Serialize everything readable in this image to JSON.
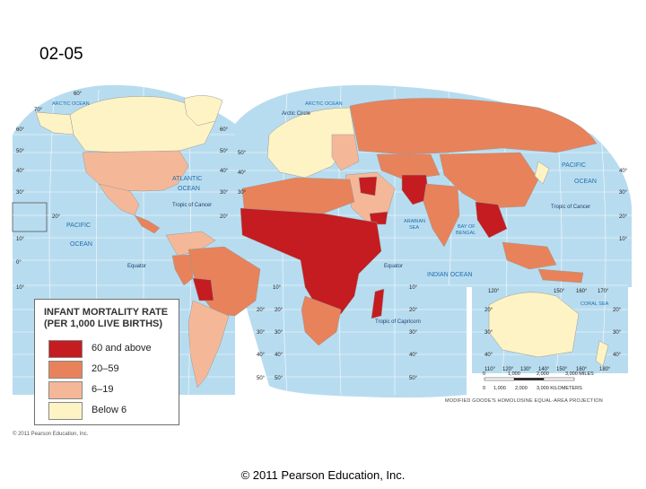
{
  "slide": {
    "title": "02-05",
    "footer": "© 2011 Pearson Education, Inc.",
    "small_credit": "© 2011 Pearson Education, Inc."
  },
  "map": {
    "projection_note": "MODIFIED GOODE'S HOMOLOSINE EQUAL-AREA PROJECTION",
    "colors": {
      "ocean": "#b8dcef",
      "very_high": "#c41c20",
      "high": "#e8825a",
      "medium": "#f4b898",
      "low": "#fdf3c4",
      "grid": "#ffffff"
    },
    "legend": {
      "title_line1": "INFANT MORTALITY RATE",
      "title_line2": "(PER 1,000 LIVE BIRTHS)",
      "items": [
        {
          "label": "60 and above",
          "color": "#c41c20"
        },
        {
          "label": "20–59",
          "color": "#e8825a"
        },
        {
          "label": "6–19",
          "color": "#f4b898"
        },
        {
          "label": "Below 6",
          "color": "#fdf3c4"
        }
      ]
    },
    "labels": {
      "arctic_ocean_left": "ARCTIC OCEAN",
      "arctic_ocean_right": "ARCTIC OCEAN",
      "arctic_circle": "Arctic Circle",
      "atlantic_ocean_1": "ATLANTIC",
      "atlantic_ocean_2": "OCEAN",
      "pacific_ocean_left_1": "PACIFIC",
      "pacific_ocean_left_2": "OCEAN",
      "pacific_ocean_right_1": "PACIFIC",
      "pacific_ocean_right_2": "OCEAN",
      "indian_ocean": "INDIAN OCEAN",
      "arabian_sea_1": "ARABIAN",
      "arabian_sea_2": "SEA",
      "bay_of_bengal_1": "BAY OF",
      "bay_of_bengal_2": "BENGAL",
      "coral_sea": "CORAL SEA",
      "tropic_cancer_left": "Tropic of Cancer",
      "tropic_cancer_right": "Tropic of Cancer",
      "tropic_capricorn": "Tropic of Capricorn",
      "equator_left": "Equator",
      "equator_right": "Equator"
    },
    "lat_labels": [
      "60°",
      "50°",
      "40°",
      "30°",
      "20°",
      "10°",
      "0°",
      "10°",
      "20°",
      "30°",
      "40°",
      "50°",
      "60°",
      "70°"
    ],
    "lon_labels_bottom": [
      "110°",
      "120°",
      "130°",
      "140°",
      "150°",
      "160°",
      "180°"
    ],
    "lon_labels_top_right": [
      "120°",
      "150°",
      "160°",
      "170°"
    ],
    "scale": {
      "miles_ticks": [
        "0",
        "1,000",
        "2,000",
        "3,000 MILES"
      ],
      "km_ticks": [
        "0",
        "1,000",
        "2,000",
        "3,000 KILOMETERS"
      ]
    }
  }
}
